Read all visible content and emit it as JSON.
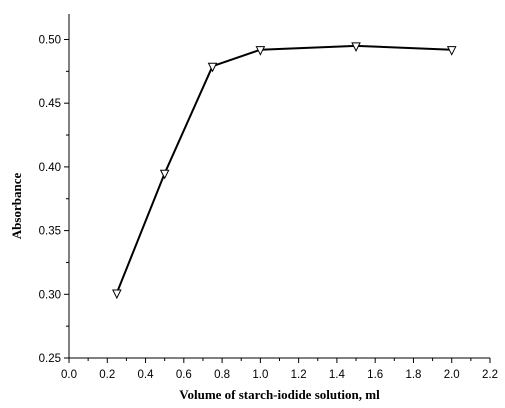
{
  "chart_data": {
    "type": "line",
    "xlabel": "Volume of starch-iodide solution, ml",
    "ylabel": "Absorbance",
    "xlim": [
      0.0,
      2.2
    ],
    "ylim": [
      0.25,
      0.52
    ],
    "x_ticks": [
      "0.0",
      "0.2",
      "0.4",
      "0.6",
      "0.8",
      "1.0",
      "1.2",
      "1.4",
      "1.6",
      "1.8",
      "2.0",
      "2.2"
    ],
    "y_ticks": [
      "0.25",
      "0.30",
      "0.35",
      "0.40",
      "0.45",
      "0.50"
    ],
    "grid": false,
    "marker": "down-triangle-open",
    "series": [
      {
        "x": [
          0.25,
          0.5,
          0.75,
          1.0,
          1.5,
          2.0
        ],
        "y": [
          0.301,
          0.395,
          0.479,
          0.492,
          0.495,
          0.492
        ]
      }
    ],
    "colors": {
      "line": "#000000",
      "marker_fill": "#ffffff"
    }
  }
}
